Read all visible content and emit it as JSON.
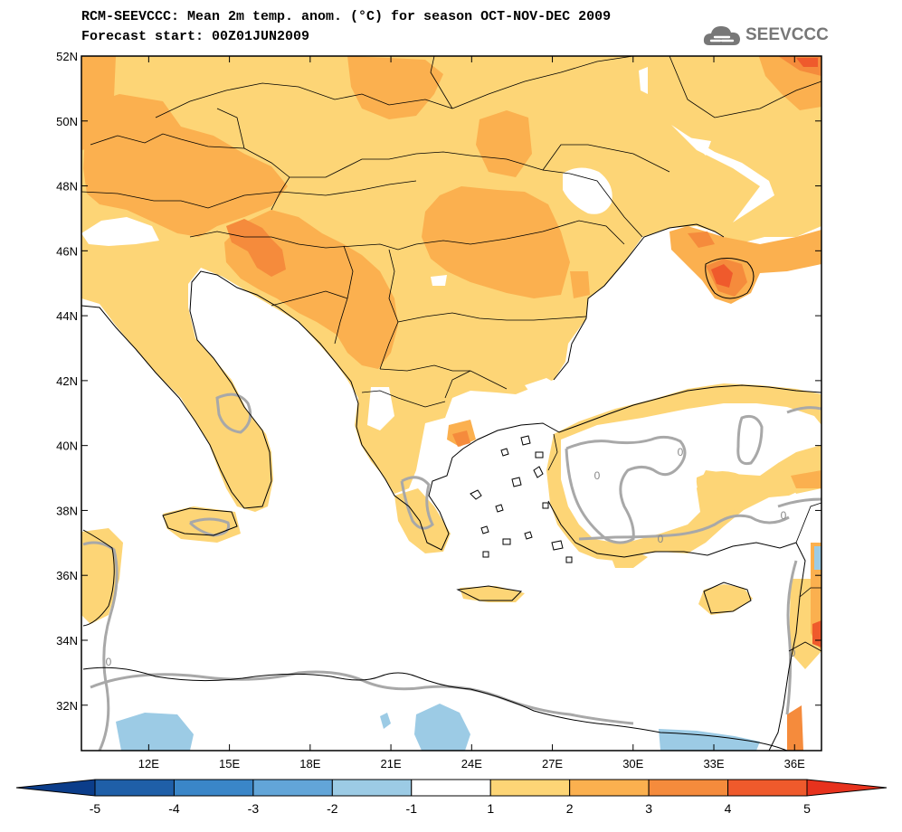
{
  "header": {
    "title_line1": "RCM-SEEVCCC: Mean 2m temp. anom. (°C) for season OCT-NOV-DEC 2009",
    "title_line2": "Forecast start: 00Z01JUN2009"
  },
  "logo": {
    "text": "SEEVCCC",
    "icon": "cloud-logo-icon"
  },
  "map": {
    "lon_range": [
      9.5,
      37.0
    ],
    "lat_range": [
      30.6,
      52.0
    ],
    "lat_ticks": [
      {
        "value": 52,
        "label": "52N"
      },
      {
        "value": 50,
        "label": "50N"
      },
      {
        "value": 48,
        "label": "48N"
      },
      {
        "value": 46,
        "label": "46N"
      },
      {
        "value": 44,
        "label": "44N"
      },
      {
        "value": 42,
        "label": "42N"
      },
      {
        "value": 40,
        "label": "40N"
      },
      {
        "value": 38,
        "label": "38N"
      },
      {
        "value": 36,
        "label": "36N"
      },
      {
        "value": 34,
        "label": "34N"
      },
      {
        "value": 32,
        "label": "32N"
      }
    ],
    "lon_ticks": [
      {
        "value": 12,
        "label": "12E"
      },
      {
        "value": 15,
        "label": "15E"
      },
      {
        "value": 18,
        "label": "18E"
      },
      {
        "value": 21,
        "label": "21E"
      },
      {
        "value": 24,
        "label": "24E"
      },
      {
        "value": 27,
        "label": "27E"
      },
      {
        "value": 30,
        "label": "30E"
      },
      {
        "value": 33,
        "label": "33E"
      },
      {
        "value": 36,
        "label": "36E"
      }
    ],
    "contour_label": "0"
  },
  "colorbar": {
    "labels": [
      "-5",
      "-4",
      "-3",
      "-2",
      "-1",
      "1",
      "2",
      "3",
      "4",
      "5"
    ],
    "under_color": "#0b3d8a",
    "over_color": "#e7321d",
    "bins": [
      {
        "color": "#1f5fa8"
      },
      {
        "color": "#3a86c8"
      },
      {
        "color": "#62a5d8"
      },
      {
        "color": "#9ccbe5"
      },
      {
        "color": "#ffffff"
      },
      {
        "color": "#fdd576"
      },
      {
        "color": "#fbb04f"
      },
      {
        "color": "#f58b3c"
      },
      {
        "color": "#ef5a2c"
      }
    ]
  },
  "colors": {
    "anom_1_2": "#fdd576",
    "anom_2_3": "#fbb04f",
    "anom_3_4": "#f58b3c",
    "anom_4_5": "#ef5a2c",
    "anom_m2_m1": "#9ccbe5",
    "contour_zero": "#a8a8a8"
  }
}
